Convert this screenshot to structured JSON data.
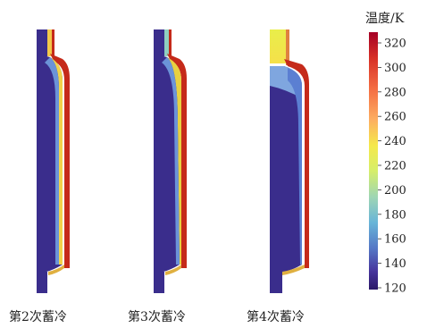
{
  "colorbar": {
    "title": "温度/K",
    "ticks": [
      "320",
      "300",
      "280",
      "260",
      "240",
      "220",
      "200",
      "180",
      "160",
      "140",
      "120"
    ],
    "colors": [
      "#a50026",
      "#d73027",
      "#f46d43",
      "#fdae61",
      "#fee090",
      "#e9f542",
      "#b8e186",
      "#7ccfd6",
      "#4aa3d3",
      "#5b6fc2",
      "#46309a",
      "#2d1a6b"
    ]
  },
  "panels": [
    {
      "label": "第2次蓄冷",
      "fill_level": 0.0
    },
    {
      "label": "第3次蓄冷",
      "fill_level": 0.0
    },
    {
      "label": "第4次蓄冷",
      "fill_level": 0.12
    }
  ],
  "colors": {
    "cold": "#3a2d8c",
    "cool": "#5d7bd0",
    "warm": "#f2e84a",
    "hot": "#d8341c",
    "edge": "#b11a1a"
  }
}
